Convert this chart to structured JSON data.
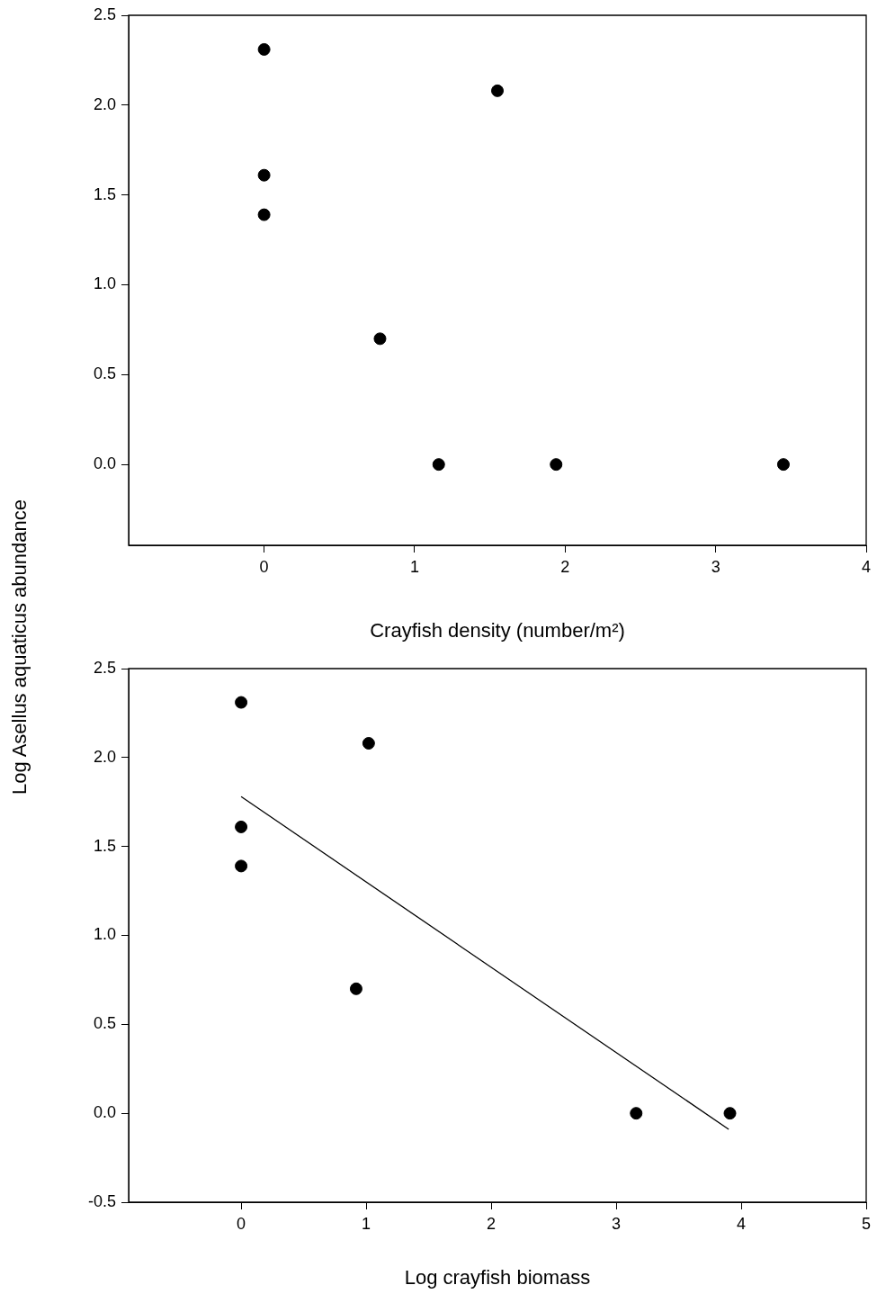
{
  "chart_data": [
    {
      "type": "scatter",
      "xlabel": "Crayfish density (number/m²)",
      "ylabel": "Log Asellus aquaticus abundance",
      "xlim": [
        -0.9,
        4
      ],
      "xticks": [
        0,
        1,
        2,
        3,
        4
      ],
      "ylim": [
        -0.45,
        2.5
      ],
      "yticks": [
        {
          "value": 0,
          "label": "0.0"
        },
        {
          "value": 0.5,
          "label": "0.5"
        },
        {
          "value": 1,
          "label": "1.0"
        },
        {
          "value": 1.5,
          "label": "1.5"
        },
        {
          "value": 2,
          "label": "2.0"
        },
        {
          "value": 2.5,
          "label": "2.5"
        }
      ],
      "grid": false,
      "legend": false,
      "marker": "circle",
      "series": [
        {
          "color": "#000000",
          "x": [
            0,
            0,
            0,
            1.55,
            0.77,
            1.16,
            1.94,
            3.45
          ],
          "values": [
            2.31,
            1.61,
            1.39,
            2.08,
            0.7,
            0,
            0,
            0
          ]
        }
      ]
    },
    {
      "type": "scatter",
      "xlabel": "Log crayfish biomass",
      "xlim": [
        -0.9,
        5
      ],
      "xticks": [
        0,
        1,
        2,
        3,
        4,
        5
      ],
      "ylim": [
        -0.5,
        2.5
      ],
      "yticks": [
        {
          "value": -0.5,
          "label": "-0.5"
        },
        {
          "value": 0,
          "label": "0.0"
        },
        {
          "value": 0.5,
          "label": "0.5"
        },
        {
          "value": 1,
          "label": "1.0"
        },
        {
          "value": 1.5,
          "label": "1.5"
        },
        {
          "value": 2,
          "label": "2.0"
        },
        {
          "value": 2.5,
          "label": "2.5"
        }
      ],
      "grid": false,
      "legend": false,
      "marker": "circle",
      "series": [
        {
          "color": "#000000",
          "x": [
            0,
            0,
            0,
            1.02,
            0.92,
            3.16,
            3.91
          ],
          "values": [
            2.31,
            1.61,
            1.39,
            2.08,
            0.7,
            0,
            0
          ]
        },
        {
          "type": "line",
          "color": "#000000",
          "marker": "none",
          "x": [
            0,
            3.9
          ],
          "values": [
            1.78,
            -0.09
          ]
        }
      ]
    }
  ]
}
